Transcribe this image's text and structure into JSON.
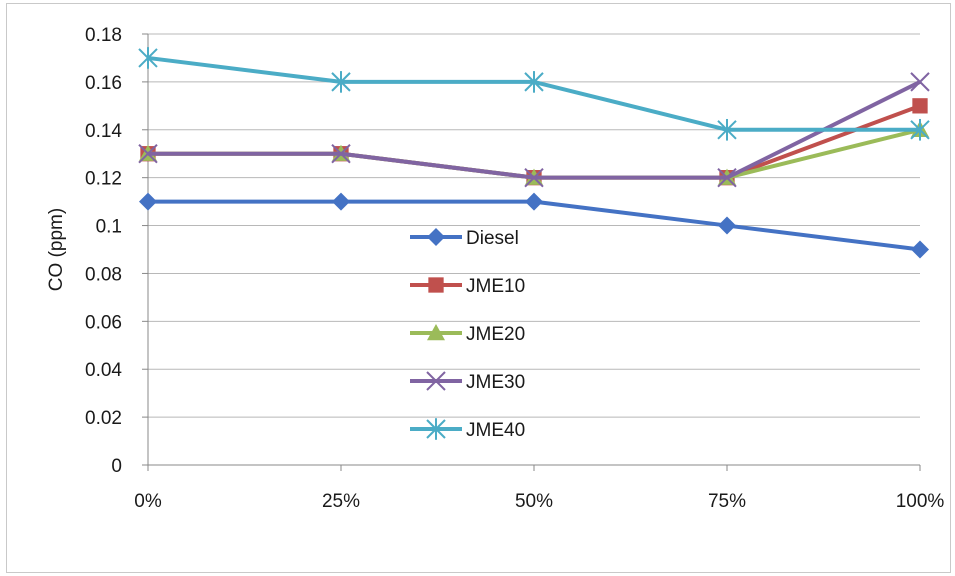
{
  "chart_data": {
    "type": "line",
    "categories": [
      "0%",
      "25%",
      "50%",
      "75%",
      "100%"
    ],
    "ylabel": "CO (ppm)",
    "ylim": [
      0,
      0.18
    ],
    "yticks": [
      "0",
      "0.02",
      "0.04",
      "0.06",
      "0.08",
      "0.1",
      "0.12",
      "0.14",
      "0.16",
      "0.18"
    ],
    "grid": "horizontal",
    "legend_position": "center",
    "series": [
      {
        "name": "Diesel",
        "values": [
          0.11,
          0.11,
          0.11,
          0.1,
          0.09
        ],
        "color": "#4472c4",
        "marker": "diamond"
      },
      {
        "name": "JME10",
        "values": [
          0.13,
          0.13,
          0.12,
          0.12,
          0.15
        ],
        "color": "#c0504d",
        "marker": "square"
      },
      {
        "name": "JME20",
        "values": [
          0.13,
          0.13,
          0.12,
          0.12,
          0.14
        ],
        "color": "#9bbb59",
        "marker": "triangle"
      },
      {
        "name": "JME30",
        "values": [
          0.13,
          0.13,
          0.12,
          0.12,
          0.16
        ],
        "color": "#8064a2",
        "marker": "x"
      },
      {
        "name": "JME40",
        "values": [
          0.17,
          0.16,
          0.16,
          0.14,
          0.14
        ],
        "color": "#4bacc6",
        "marker": "star"
      }
    ]
  }
}
